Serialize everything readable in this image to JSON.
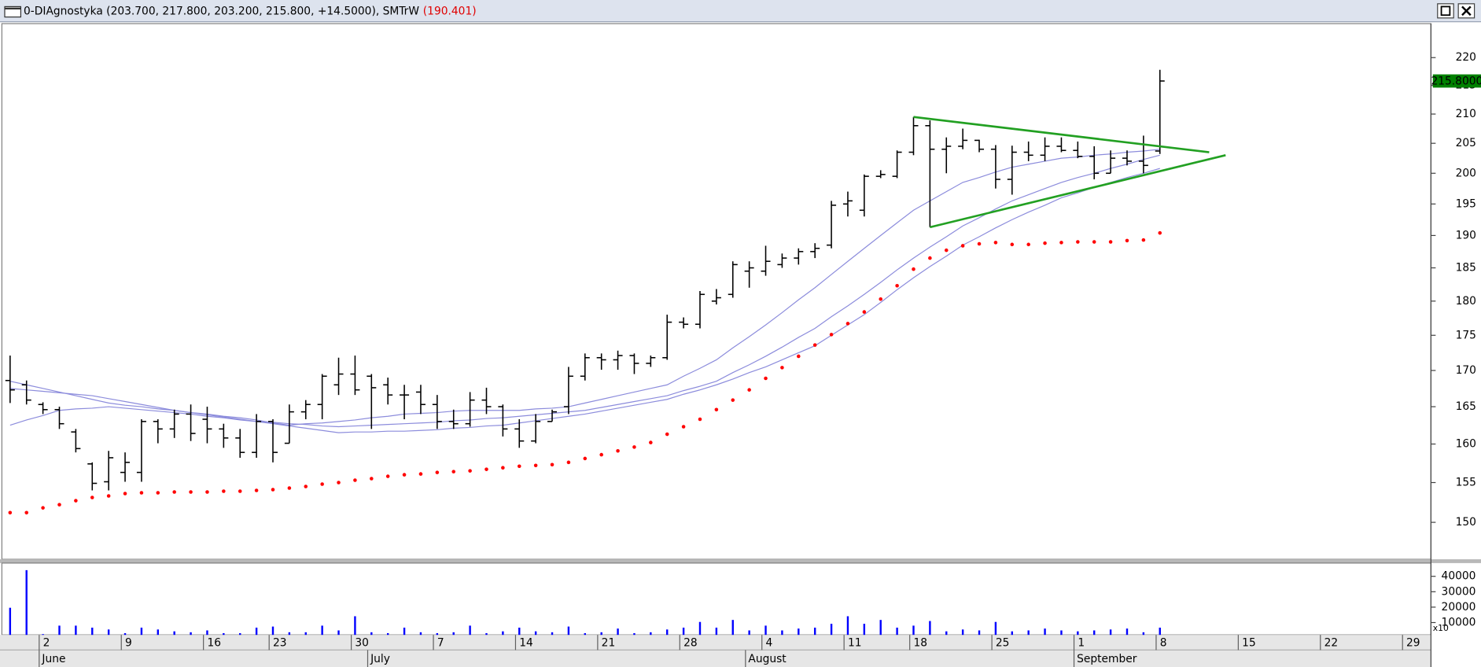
{
  "chart_data": {
    "type": "ohlc",
    "title": "0-DIAgnostyka (203.700, 217.800, 203.200, 215.800, +14.5000), SMTrW",
    "indicator_label": "(190.401)",
    "indicator_color": "#e00000",
    "log_scale": true,
    "ylim": [
      145.5,
      226.25
    ],
    "yticks": [
      150,
      155,
      160,
      165,
      170,
      175,
      180,
      185,
      190,
      195,
      200,
      205,
      210,
      215,
      220
    ],
    "last_price": {
      "value": 215.8,
      "label": "215.8000"
    },
    "last_price_color": "#008000",
    "categories": [
      null,
      null,
      "2",
      null,
      null,
      null,
      null,
      "9",
      null,
      null,
      null,
      null,
      "16",
      null,
      null,
      null,
      "23",
      null,
      null,
      null,
      null,
      "30",
      null,
      null,
      null,
      null,
      "7",
      null,
      null,
      null,
      null,
      "14",
      null,
      null,
      null,
      null,
      "21",
      null,
      null,
      null,
      null,
      "28",
      null,
      null,
      null,
      null,
      "4",
      null,
      null,
      null,
      null,
      "11",
      null,
      null,
      null,
      "18",
      null,
      null,
      null,
      null,
      "25",
      null,
      null,
      null,
      null,
      "1",
      null,
      null,
      null,
      null,
      "8",
      null,
      null,
      null,
      null,
      "15",
      null,
      null,
      null,
      null,
      "22",
      null,
      null,
      null,
      null,
      "29",
      null
    ],
    "month_labels": [
      null,
      null,
      "June",
      null,
      null,
      null,
      null,
      null,
      null,
      null,
      null,
      null,
      null,
      null,
      null,
      null,
      null,
      null,
      null,
      null,
      null,
      null,
      "July",
      null,
      null,
      null,
      null,
      null,
      null,
      null,
      null,
      null,
      null,
      null,
      null,
      null,
      null,
      null,
      null,
      null,
      null,
      null,
      null,
      null,
      null,
      "August",
      null,
      null,
      null,
      null,
      null,
      null,
      null,
      null,
      null,
      null,
      null,
      null,
      null,
      null,
      null,
      null,
      null,
      null,
      null,
      "September",
      null,
      null,
      null,
      null,
      null,
      null,
      null,
      null,
      null,
      null,
      null,
      null,
      null,
      null,
      null,
      null,
      null,
      null,
      null,
      null,
      null
    ],
    "ohlc": {
      "color": "#000000",
      "open": [
        168.6,
        168.0,
        165.3,
        164.6,
        161.6,
        157.4,
        155.1,
        156.3,
        156.3,
        163.0,
        162.0,
        164.0,
        163.3,
        162.0,
        160.8,
        158.9,
        163.0,
        160.1,
        164.3,
        165.3,
        168.0,
        169.5,
        169.2,
        168.0,
        166.6,
        167.0,
        165.3,
        163.0,
        162.7,
        165.9,
        165.0,
        162.0,
        160.4,
        163.0,
        165.0,
        169.2,
        171.8,
        171.5,
        172.1,
        171.0,
        171.8,
        176.9,
        176.6,
        180.0,
        181.0,
        184.5,
        184.5,
        185.5,
        186.5,
        187.5,
        188.5,
        195.0,
        194.0,
        199.5,
        199.5,
        203.5,
        208.0,
        204.0,
        204.5,
        205.5,
        204.0,
        199.0,
        203.5,
        203.0,
        204.5,
        203.8,
        202.8,
        200.0,
        202.5,
        202.0,
        203.7,
        null,
        null,
        null,
        null,
        null,
        null,
        null,
        null,
        null,
        null,
        null,
        null,
        null,
        null,
        null,
        null
      ],
      "high": [
        172.1,
        168.6,
        165.6,
        165.0,
        162.0,
        157.6,
        159.1,
        158.9,
        163.3,
        163.3,
        164.6,
        165.3,
        165.0,
        162.7,
        162.0,
        164.0,
        163.3,
        165.3,
        165.9,
        169.5,
        171.8,
        172.1,
        169.5,
        169.0,
        168.0,
        168.0,
        166.6,
        164.6,
        167.0,
        167.6,
        165.3,
        163.3,
        164.0,
        164.6,
        170.5,
        172.4,
        172.4,
        172.8,
        172.4,
        172.1,
        178.0,
        177.6,
        181.5,
        181.8,
        186.0,
        186.0,
        188.4,
        187.2,
        188.0,
        188.8,
        195.5,
        197.0,
        199.8,
        200.5,
        203.8,
        209.5,
        208.9,
        206.0,
        207.5,
        205.6,
        204.7,
        204.6,
        205.3,
        206.0,
        206.0,
        205.3,
        204.5,
        203.8,
        203.8,
        206.3,
        217.8,
        null,
        null,
        null,
        null,
        null,
        null,
        null,
        null,
        null,
        null,
        null,
        null,
        null,
        null,
        null,
        null
      ],
      "low": [
        165.5,
        165.3,
        164.0,
        162.0,
        158.9,
        154.0,
        154.0,
        155.1,
        155.1,
        160.1,
        160.8,
        160.4,
        160.1,
        159.5,
        158.2,
        158.2,
        157.6,
        160.1,
        163.3,
        163.3,
        166.6,
        166.6,
        162.0,
        165.3,
        163.3,
        164.0,
        162.0,
        162.0,
        162.3,
        164.0,
        161.0,
        159.5,
        160.1,
        163.0,
        164.0,
        168.6,
        170.1,
        170.1,
        169.5,
        170.5,
        171.5,
        176.0,
        176.0,
        179.5,
        180.5,
        182.0,
        183.8,
        185.0,
        185.5,
        186.5,
        188.0,
        193.0,
        193.0,
        199.2,
        199.2,
        203.0,
        191.3,
        200.0,
        204.0,
        203.5,
        197.5,
        196.5,
        202.0,
        202.0,
        203.5,
        202.5,
        199.0,
        200.0,
        201.3,
        200.0,
        203.2,
        null,
        null,
        null,
        null,
        null,
        null,
        null,
        null,
        null,
        null,
        null,
        null,
        null,
        null,
        null,
        null
      ],
      "close": [
        167.3,
        165.9,
        164.6,
        162.7,
        159.4,
        154.9,
        158.2,
        157.6,
        163.0,
        162.0,
        164.0,
        161.4,
        162.0,
        160.8,
        158.9,
        163.0,
        158.9,
        164.3,
        165.3,
        169.2,
        169.5,
        167.3,
        167.6,
        166.6,
        166.6,
        165.3,
        163.0,
        162.7,
        165.9,
        165.0,
        162.0,
        160.4,
        163.0,
        164.3,
        169.2,
        171.8,
        171.5,
        172.1,
        171.0,
        171.8,
        176.9,
        176.6,
        181.0,
        180.5,
        185.5,
        185.0,
        186.0,
        186.5,
        187.5,
        188.0,
        194.8,
        195.5,
        199.5,
        199.8,
        203.5,
        208.0,
        204.0,
        204.5,
        205.5,
        204.0,
        199.0,
        203.5,
        203.0,
        204.5,
        203.8,
        202.8,
        200.0,
        202.5,
        202.0,
        201.3,
        215.8,
        null,
        null,
        null,
        null,
        null,
        null,
        null,
        null,
        null,
        null,
        null,
        null,
        null,
        null,
        null,
        null
      ]
    },
    "series": [
      {
        "color": "#8c8cdc",
        "values": [
          168.5,
          168.0,
          167.5,
          167.0,
          166.5,
          166.0,
          165.5,
          165.2,
          165.0,
          164.7,
          164.5,
          164.2,
          164.0,
          163.7,
          163.5,
          163.2,
          162.8,
          162.5,
          162.7,
          162.8,
          163.0,
          163.2,
          163.5,
          163.7,
          164.0,
          164.1,
          164.2,
          164.4,
          164.5,
          164.5,
          164.5,
          164.5,
          164.7,
          164.8,
          165.0,
          165.5,
          166.0,
          166.5,
          167.0,
          167.5,
          168.0,
          169.2,
          170.3,
          171.5,
          173.2,
          174.8,
          176.5,
          178.3,
          180.2,
          182.0,
          184.0,
          186.0,
          188.0,
          190.0,
          192.0,
          194.0,
          195.5,
          197.0,
          198.5,
          199.3,
          200.2,
          201.0,
          201.5,
          202.0,
          202.5,
          202.7,
          203.0,
          203.2,
          203.5,
          203.7,
          204.0,
          null,
          null,
          null,
          null,
          null,
          null,
          null,
          null,
          null,
          null,
          null,
          null,
          null,
          null,
          null,
          null
        ]
      },
      {
        "color": "#8c8cdc",
        "values": [
          167.5,
          167.3,
          167.1,
          166.9,
          166.7,
          166.5,
          166.1,
          165.7,
          165.3,
          164.9,
          164.5,
          164.2,
          163.9,
          163.6,
          163.3,
          163.0,
          162.9,
          162.7,
          162.6,
          162.4,
          162.3,
          162.4,
          162.5,
          162.6,
          162.7,
          162.8,
          162.9,
          163.1,
          163.2,
          163.4,
          163.5,
          163.7,
          163.9,
          164.1,
          164.3,
          164.5,
          164.9,
          165.3,
          165.7,
          166.1,
          166.5,
          167.2,
          167.8,
          168.5,
          169.7,
          170.8,
          172.0,
          173.3,
          174.7,
          176.0,
          177.7,
          179.3,
          181.0,
          182.8,
          184.7,
          186.5,
          188.2,
          189.8,
          191.5,
          192.8,
          194.2,
          195.5,
          196.5,
          197.5,
          198.5,
          199.3,
          200.0,
          200.8,
          201.5,
          202.3,
          203.0,
          null,
          null,
          null,
          null,
          null,
          null,
          null,
          null,
          null,
          null,
          null,
          null,
          null,
          null,
          null,
          null
        ]
      },
      {
        "color": "#8c8cdc",
        "values": [
          162.5,
          163.2,
          163.8,
          164.5,
          164.7,
          164.8,
          165.0,
          164.8,
          164.6,
          164.4,
          164.2,
          164.0,
          163.7,
          163.5,
          163.2,
          163.0,
          162.7,
          162.4,
          162.1,
          161.8,
          161.5,
          161.6,
          161.6,
          161.7,
          161.7,
          161.8,
          161.9,
          162.1,
          162.2,
          162.4,
          162.5,
          162.8,
          163.1,
          163.4,
          163.7,
          164.0,
          164.4,
          164.8,
          165.2,
          165.6,
          166.0,
          166.7,
          167.3,
          168.0,
          168.8,
          169.7,
          170.5,
          171.5,
          172.5,
          173.5,
          175.0,
          176.5,
          178.0,
          179.8,
          181.7,
          183.5,
          185.2,
          186.8,
          188.5,
          189.8,
          191.2,
          192.5,
          193.7,
          194.8,
          196.0,
          196.8,
          197.7,
          198.5,
          199.3,
          200.0,
          200.8,
          null,
          null,
          null,
          null,
          null,
          null,
          null,
          null,
          null,
          null,
          null,
          null,
          null,
          null,
          null,
          null
        ]
      }
    ],
    "sar": {
      "color": "#ff0000",
      "values": [
        151.2,
        151.2,
        151.8,
        152.2,
        152.7,
        153.1,
        153.3,
        153.6,
        153.7,
        153.7,
        153.8,
        153.8,
        153.8,
        153.9,
        153.9,
        154.0,
        154.1,
        154.3,
        154.5,
        154.8,
        155.0,
        155.3,
        155.5,
        155.8,
        156.0,
        156.1,
        156.3,
        156.4,
        156.5,
        156.7,
        156.9,
        157.1,
        157.2,
        157.3,
        157.6,
        158.1,
        158.6,
        159.1,
        159.6,
        160.2,
        161.3,
        162.3,
        163.3,
        164.6,
        165.9,
        167.3,
        168.9,
        170.4,
        172.0,
        173.6,
        175.1,
        176.7,
        178.4,
        180.3,
        182.3,
        184.8,
        186.5,
        187.7,
        188.4,
        188.7,
        188.9,
        188.6,
        188.6,
        188.8,
        188.9,
        189.0,
        189.0,
        189.0,
        189.2,
        189.3,
        190.4,
        null,
        null,
        null,
        null,
        null,
        null,
        null,
        null,
        null,
        null,
        null,
        null,
        null,
        null,
        null,
        null
      ]
    },
    "trendlines": [
      {
        "color": "#22a022",
        "x": [
          55,
          73
        ],
        "values": [
          209.5,
          203.5
        ]
      },
      {
        "color": "#22a022",
        "x": [
          56,
          74
        ],
        "values": [
          191.3,
          203.0
        ]
      }
    ],
    "volume": {
      "type": "bar",
      "color": "#0000ff",
      "ylim": [
        2000,
        48600
      ],
      "yticks": [
        10000,
        20000,
        30000,
        40000
      ],
      "multiplier_label": "x10",
      "values": [
        19600,
        44000,
        2500,
        8000,
        8000,
        6700,
        5500,
        3100,
        6700,
        5500,
        4300,
        3700,
        4900,
        3100,
        3100,
        6700,
        7400,
        3700,
        3700,
        8000,
        4900,
        14100,
        3700,
        3100,
        6700,
        3700,
        3100,
        3700,
        8000,
        3100,
        4300,
        6700,
        4300,
        3700,
        7400,
        3100,
        3700,
        6100,
        3100,
        3700,
        5500,
        6700,
        10400,
        6700,
        11700,
        4900,
        8000,
        4900,
        6100,
        6700,
        9200,
        14100,
        9200,
        11700,
        6700,
        8000,
        11000,
        4300,
        5500,
        4900,
        10400,
        4300,
        4900,
        6100,
        4900,
        4300,
        4900,
        5500,
        6100,
        3700,
        6700,
        null,
        null,
        null,
        null,
        null,
        null,
        null,
        null,
        null,
        null,
        null,
        null,
        null,
        null,
        null,
        null
      ]
    }
  }
}
